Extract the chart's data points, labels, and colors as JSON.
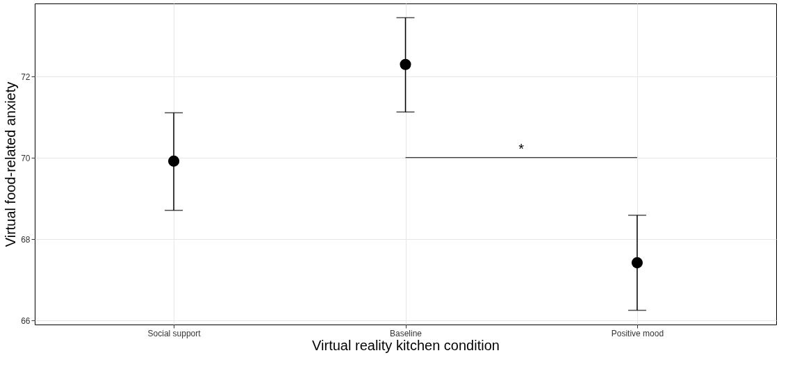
{
  "chart_data": {
    "type": "scatter",
    "xlabel": "Virtual reality kitchen condition",
    "ylabel": "Virtual food-related anxiety",
    "categories": [
      "Social support",
      "Baseline",
      "Positive mood"
    ],
    "values": [
      69.92,
      72.3,
      67.42
    ],
    "errors": [
      [
        68.71,
        71.11
      ],
      [
        71.13,
        73.45
      ],
      [
        66.25,
        68.59
      ]
    ],
    "color": "#000000",
    "ylim": [
      65.9,
      73.8
    ],
    "yticks": [
      66,
      68,
      70,
      72
    ],
    "grid": true,
    "annotations": [
      "*"
    ]
  }
}
